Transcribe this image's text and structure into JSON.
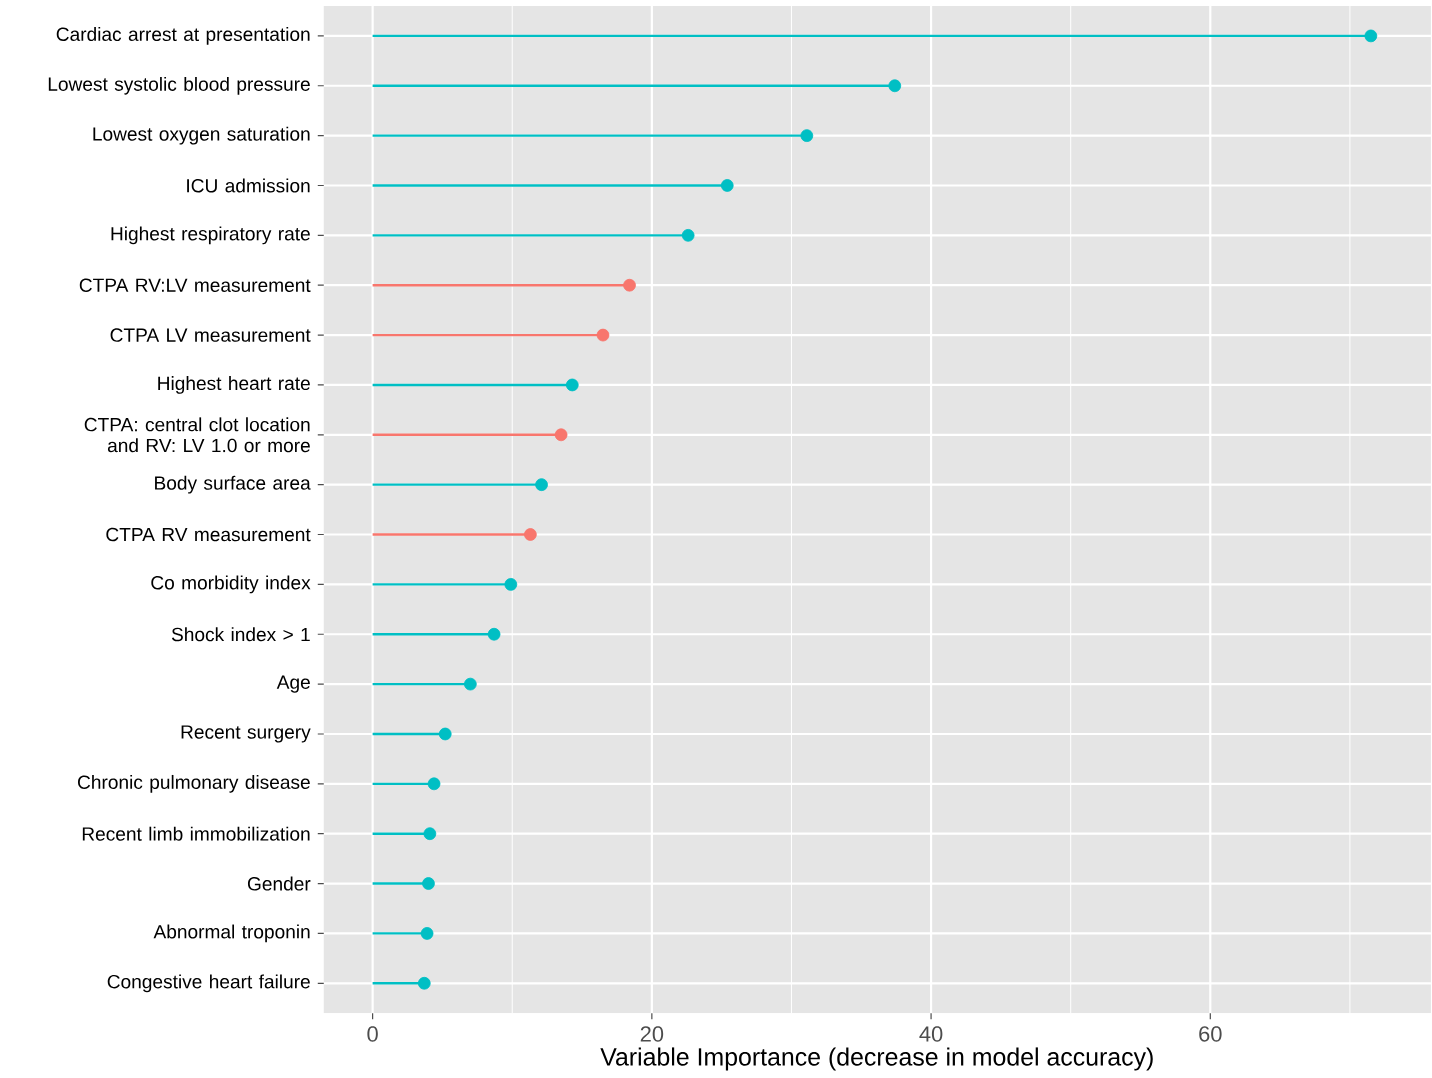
{
  "chart_data": {
    "type": "lollipop",
    "orientation": "horizontal",
    "xlabel": "Variable Importance (decrease in model  accuracy)",
    "categories": [
      "Cardiac arrest at presentation",
      "Lowest systolic blood pressure",
      "Lowest oxygen saturation",
      "ICU admission",
      "Highest respiratory rate",
      "CTPA RV:LV measurement",
      "CTPA LV measurement",
      "Highest heart rate",
      "CTPA: central clot location and RV: LV 1.0 or more",
      "Body surface area",
      "CTPA RV measurement",
      "Co morbidity index",
      "Shock index > 1",
      "Age",
      "Recent surgery",
      "Chronic pulmonary disease",
      "Recent limb immobilization",
      "Gender",
      "Abnormal troponin",
      "Congestive heart failure"
    ],
    "values": [
      71.5,
      37.4,
      31.1,
      25.4,
      22.6,
      18.4,
      16.5,
      14.3,
      13.5,
      12.1,
      11.3,
      9.9,
      8.7,
      7.0,
      5.2,
      4.4,
      4.1,
      4.0,
      3.9,
      3.7
    ],
    "colors": [
      "#00bfc4",
      "#00bfc4",
      "#00bfc4",
      "#00bfc4",
      "#00bfc4",
      "#f8766d",
      "#f8766d",
      "#00bfc4",
      "#f8766d",
      "#00bfc4",
      "#f8766d",
      "#00bfc4",
      "#00bfc4",
      "#00bfc4",
      "#00bfc4",
      "#00bfc4",
      "#00bfc4",
      "#00bfc4",
      "#00bfc4",
      "#00bfc4"
    ],
    "xlim": [
      -3.5,
      75.8
    ],
    "xticks": [
      0,
      20,
      40,
      60
    ],
    "grid": true,
    "marker": "circle"
  }
}
